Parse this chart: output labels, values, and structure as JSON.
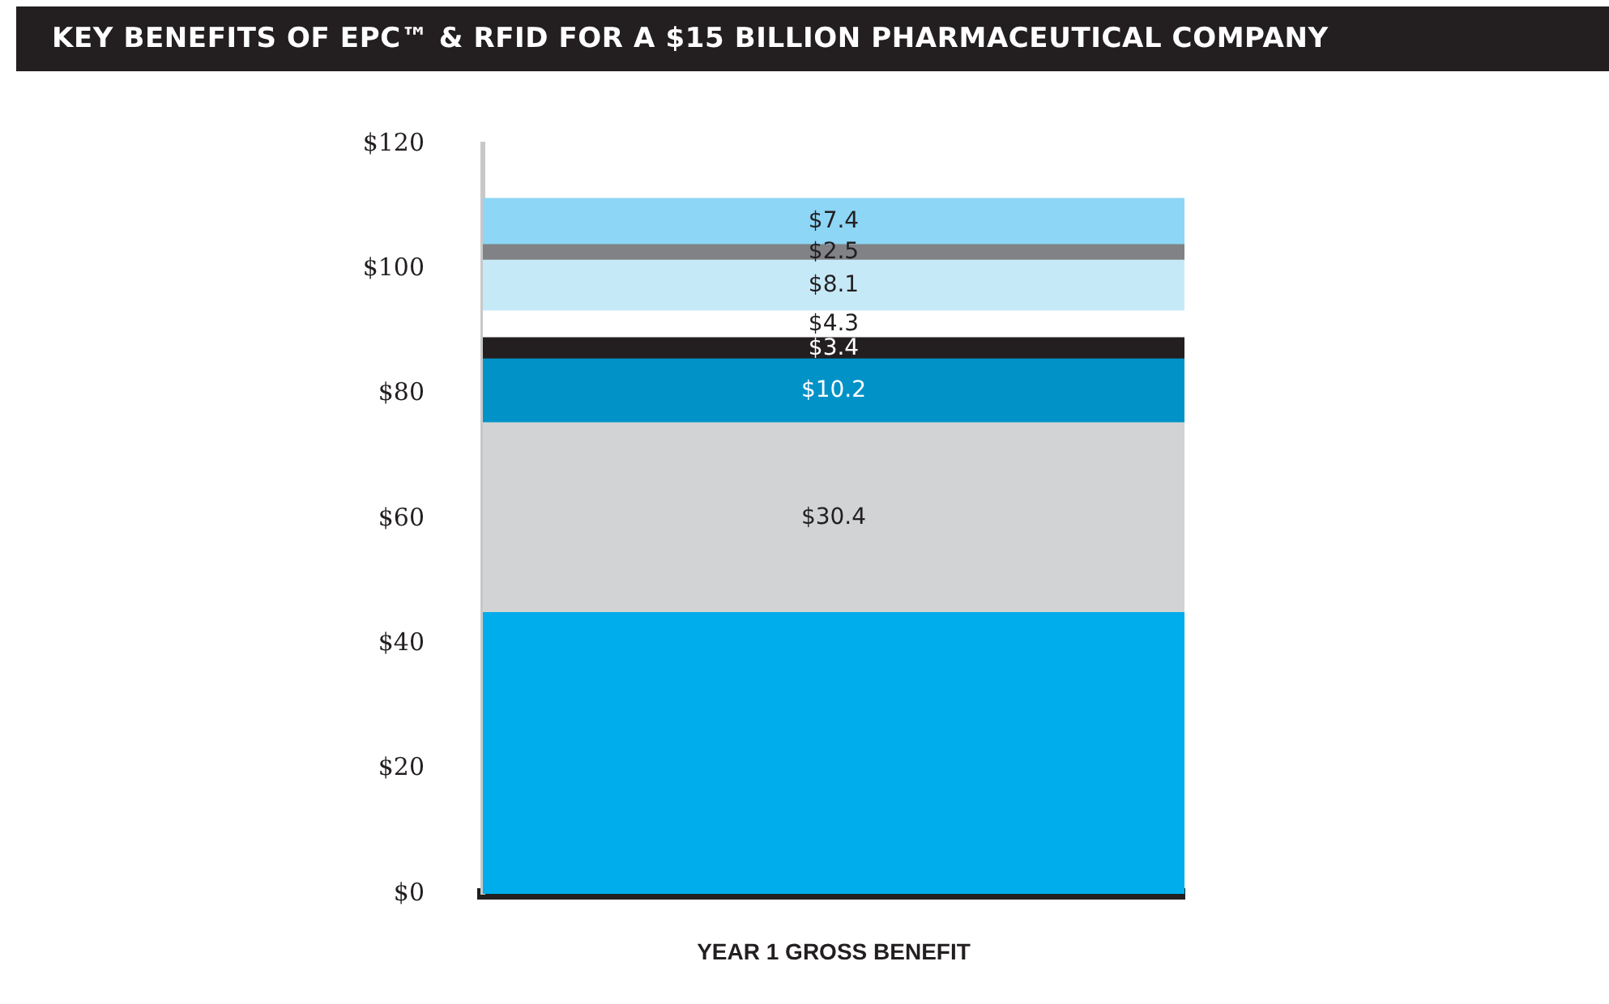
{
  "chart_data": {
    "type": "bar",
    "title": "KEY BENEFITS OF EPC™ & RFID FOR A $15 BILLION PHARMACEUTICAL COMPANY",
    "categories": [
      "YEAR 1 GROSS BENEFIT"
    ],
    "stacked": true,
    "series": [
      {
        "color": "#00adec",
        "values": [
          45
        ],
        "value_labels": [
          null
        ]
      },
      {
        "color": "#d1d3d5",
        "values": [
          30.4
        ],
        "value_labels": [
          "$30.4"
        ]
      },
      {
        "color": "#0192c8",
        "values": [
          10.2
        ],
        "value_labels": [
          "$10.2"
        ]
      },
      {
        "color": "#231f20",
        "values": [
          3.4
        ],
        "value_labels": [
          "$3.4"
        ]
      },
      {
        "color": "#ffffff",
        "values": [
          4.3
        ],
        "value_labels": [
          "$4.3"
        ]
      },
      {
        "color": "#c6e9f8",
        "values": [
          8.1
        ],
        "value_labels": [
          "$8.1"
        ]
      },
      {
        "color": "#808285",
        "values": [
          2.5
        ],
        "value_labels": [
          "$2.5"
        ]
      },
      {
        "color": "#8dd6f5",
        "values": [
          7.4
        ],
        "value_labels": [
          "$7.4"
        ]
      }
    ],
    "ylim": [
      0,
      120
    ],
    "yticks": [
      {
        "value": 0,
        "label": "$0"
      },
      {
        "value": 20,
        "label": "$20"
      },
      {
        "value": 40,
        "label": "$40"
      },
      {
        "value": 60,
        "label": "$60"
      },
      {
        "value": 80,
        "label": "$80"
      },
      {
        "value": 100,
        "label": "$100"
      },
      {
        "value": 120,
        "label": "$120"
      }
    ],
    "grid": false,
    "legend": false
  }
}
